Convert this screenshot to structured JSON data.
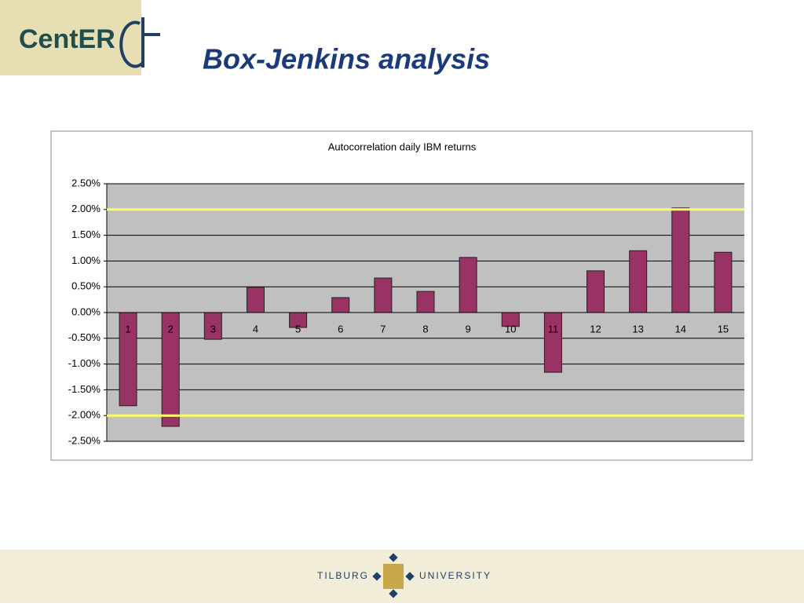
{
  "logo": "CentER",
  "title": "Box-Jenkins analysis",
  "footer": {
    "left": "Tilburg",
    "right": "University"
  },
  "chart_data": {
    "type": "bar",
    "title": "Autocorrelation daily IBM returns",
    "categories": [
      "1",
      "2",
      "3",
      "4",
      "5",
      "6",
      "7",
      "8",
      "9",
      "10",
      "11",
      "12",
      "13",
      "14",
      "15"
    ],
    "values": [
      -1.81,
      -2.21,
      -0.52,
      0.49,
      -0.29,
      0.29,
      0.67,
      0.41,
      1.07,
      -0.27,
      -1.16,
      0.81,
      1.2,
      2.03,
      1.17
    ],
    "color": "#993366",
    "ylim": [
      -2.5,
      2.5
    ],
    "yticks": [
      {
        "value": 2.5,
        "label": "2.50%"
      },
      {
        "value": 2,
        "label": "2.00%"
      },
      {
        "value": 1.5,
        "label": "1.50%"
      },
      {
        "value": 1,
        "label": "1.00%"
      },
      {
        "value": 0.5,
        "label": "0.50%"
      },
      {
        "value": 0,
        "label": "0.00%"
      },
      {
        "value": -0.5,
        "label": "-0.50%"
      },
      {
        "value": -1,
        "label": "-1.00%"
      },
      {
        "value": -1.5,
        "label": "-1.50%"
      },
      {
        "value": -2,
        "label": "-2.00%"
      },
      {
        "value": -2.5,
        "label": "-2.50%"
      }
    ],
    "grid": true,
    "reference_lines": [
      2,
      -2
    ],
    "reference_color": "#ffff66"
  }
}
